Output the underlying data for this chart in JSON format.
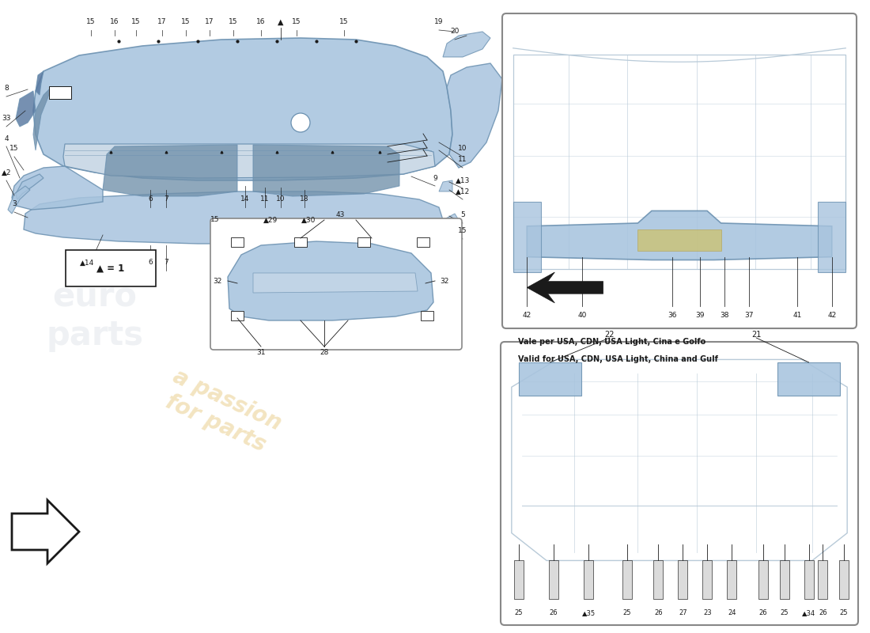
{
  "bg_color": "#ffffff",
  "bumper_color": "#a8c4de",
  "bumper_dark": "#6a90b0",
  "bumper_mid": "#8fb0cc",
  "mesh_color": "#7090aa",
  "frame_color": "#b8cad8",
  "line_color": "#1a1a1a",
  "note_text_it": "Vale per USA, CDN, USA Light, Cina e Golfo",
  "note_text_en": "Valid for USA, CDN, USA Light, China and Gulf",
  "legend_text": "▲ = 1",
  "watermark_color": "#d4a020",
  "watermark_alpha": 0.28,
  "euro_color": "#b0bcc8",
  "euro_alpha": 0.2
}
